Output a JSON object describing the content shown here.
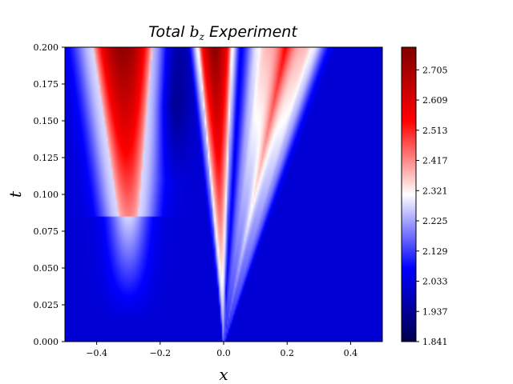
{
  "chart_data": {
    "type": "heatmap",
    "title": {
      "prefix": "Total ",
      "symbol": "b",
      "subscript": "z",
      "suffix": " Experiment"
    },
    "xlabel": "x",
    "ylabel": "t",
    "xlim": [
      -0.5,
      0.5
    ],
    "ylim": [
      0.0,
      0.2
    ],
    "x_ticks": [
      {
        "value": -0.4,
        "label": "−0.4"
      },
      {
        "value": -0.2,
        "label": "−0.2"
      },
      {
        "value": 0.0,
        "label": "0.0"
      },
      {
        "value": 0.2,
        "label": "0.2"
      },
      {
        "value": 0.4,
        "label": "0.4"
      }
    ],
    "y_ticks": [
      {
        "value": 0.0,
        "label": "0.000"
      },
      {
        "value": 0.025,
        "label": "0.025"
      },
      {
        "value": 0.05,
        "label": "0.050"
      },
      {
        "value": 0.075,
        "label": "0.075"
      },
      {
        "value": 0.1,
        "label": "0.100"
      },
      {
        "value": 0.125,
        "label": "0.125"
      },
      {
        "value": 0.15,
        "label": "0.150"
      },
      {
        "value": 0.175,
        "label": "0.175"
      },
      {
        "value": 0.2,
        "label": "0.200"
      }
    ],
    "colorbar": {
      "colormap": "seismic",
      "vmin": 1.841,
      "vmax": 2.777,
      "ticks": [
        {
          "value": 1.841,
          "label": "1.841"
        },
        {
          "value": 1.937,
          "label": "1.937"
        },
        {
          "value": 2.033,
          "label": "2.033"
        },
        {
          "value": 2.129,
          "label": "2.129"
        },
        {
          "value": 2.225,
          "label": "2.225"
        },
        {
          "value": 2.321,
          "label": "2.321"
        },
        {
          "value": 2.417,
          "label": "2.417"
        },
        {
          "value": 2.513,
          "label": "2.513"
        },
        {
          "value": 2.609,
          "label": "2.609"
        },
        {
          "value": 2.705,
          "label": "2.705"
        }
      ],
      "stops": [
        "#00004c",
        "#0000ff",
        "#ffffff",
        "#ff0000",
        "#800000"
      ]
    },
    "background_value": 2.02,
    "features": [
      {
        "name": "left-lobe",
        "kind": "parabolic-band",
        "vertex_x": -0.3,
        "vertex_t": 0.085,
        "peak_x": -0.33,
        "peak_t": 0.2,
        "peak_value": 2.75,
        "halo_value": 2.3
      },
      {
        "name": "dark-trough",
        "kind": "band",
        "x": -0.16,
        "t_from": 0.11,
        "t_to": 0.2,
        "value": 1.9
      },
      {
        "name": "center-cone",
        "kind": "wedge",
        "origin_x": 0.0,
        "origin_t": 0.0,
        "left_x_at_top": -0.075,
        "right_x_at_top": 0.02,
        "peak_value": 2.75
      },
      {
        "name": "right-wedge",
        "kind": "wedge",
        "origin_x": 0.0,
        "origin_t": 0.0,
        "left_x_at_top": 0.1,
        "right_x_at_top": 0.26,
        "peak_value": 2.55
      }
    ]
  }
}
